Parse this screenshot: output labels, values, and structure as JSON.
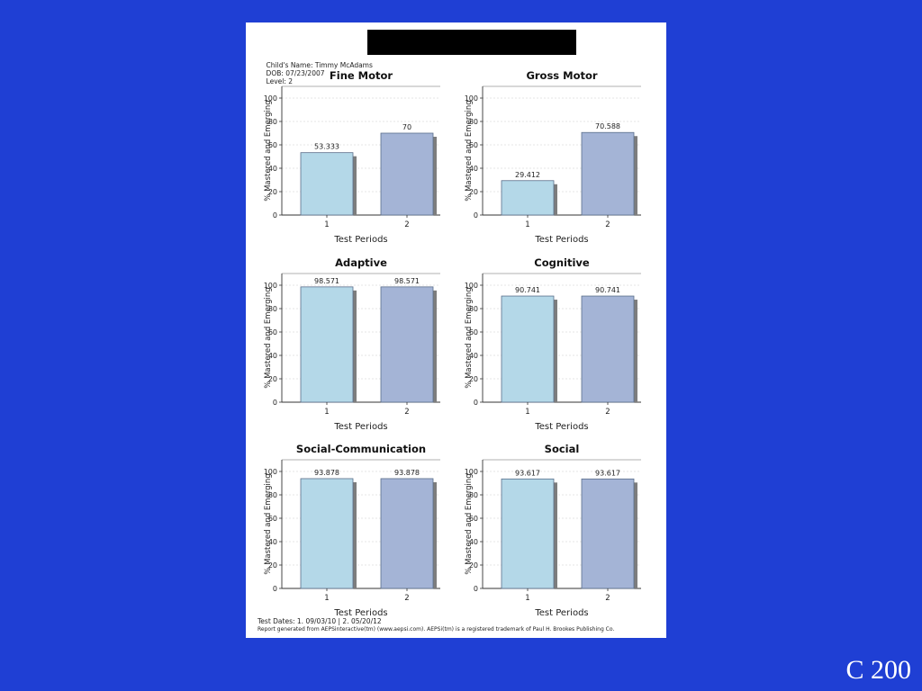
{
  "header": {
    "child_name": "Child's Name: Timmy McAdams",
    "dob": "DOB: 07/23/2007",
    "level": "Level: 2"
  },
  "footer": {
    "test_dates": "Test Dates: 1. 09/03/10  |  2. 05/20/12",
    "credit": "Report generated from AEPSinteractive(tm) (www.aepsi.com). AEPSi(tm) is a registered trademark of Paul H. Brookes Publishing Co."
  },
  "slide_label": "C 200",
  "colors": {
    "bar1": "#b4d8e8",
    "bar2": "#a4b4d6",
    "shadow": "#7d7d7d",
    "background": "#1f3fd4"
  },
  "chart_data": [
    {
      "type": "bar",
      "title": "Fine Motor",
      "categories": [
        "1",
        "2"
      ],
      "values": [
        53.333,
        70
      ],
      "labels": [
        "53.333",
        "70"
      ],
      "xlabel": "Test Periods",
      "ylabel": "% Mastered and Emerging",
      "ylim": [
        0,
        110
      ],
      "yticks": [
        0,
        20,
        40,
        60,
        80,
        100
      ]
    },
    {
      "type": "bar",
      "title": "Gross Motor",
      "categories": [
        "1",
        "2"
      ],
      "values": [
        29.412,
        70.588
      ],
      "labels": [
        "29.412",
        "70.588"
      ],
      "xlabel": "Test Periods",
      "ylabel": "% Mastered and Emerging",
      "ylim": [
        0,
        110
      ],
      "yticks": [
        0,
        20,
        40,
        60,
        80,
        100
      ]
    },
    {
      "type": "bar",
      "title": "Adaptive",
      "categories": [
        "1",
        "2"
      ],
      "values": [
        98.571,
        98.571
      ],
      "labels": [
        "98.571",
        "98.571"
      ],
      "xlabel": "Test Periods",
      "ylabel": "% Mastered and Emerging",
      "ylim": [
        0,
        110
      ],
      "yticks": [
        0,
        20,
        40,
        60,
        80,
        100
      ]
    },
    {
      "type": "bar",
      "title": "Cognitive",
      "categories": [
        "1",
        "2"
      ],
      "values": [
        90.741,
        90.741
      ],
      "labels": [
        "90.741",
        "90.741"
      ],
      "xlabel": "Test Periods",
      "ylabel": "% Mastered and Emerging",
      "ylim": [
        0,
        110
      ],
      "yticks": [
        0,
        20,
        40,
        60,
        80,
        100
      ]
    },
    {
      "type": "bar",
      "title": "Social-Communication",
      "categories": [
        "1",
        "2"
      ],
      "values": [
        93.878,
        93.878
      ],
      "labels": [
        "93.878",
        "93.878"
      ],
      "xlabel": "Test Periods",
      "ylabel": "% Mastered and Emerging",
      "ylim": [
        0,
        110
      ],
      "yticks": [
        0,
        20,
        40,
        60,
        80,
        100
      ]
    },
    {
      "type": "bar",
      "title": "Social",
      "categories": [
        "1",
        "2"
      ],
      "values": [
        93.617,
        93.617
      ],
      "labels": [
        "93.617",
        "93.617"
      ],
      "xlabel": "Test Periods",
      "ylabel": "% Mastered and Emerging",
      "ylim": [
        0,
        110
      ],
      "yticks": [
        0,
        20,
        40,
        60,
        80,
        100
      ]
    }
  ]
}
